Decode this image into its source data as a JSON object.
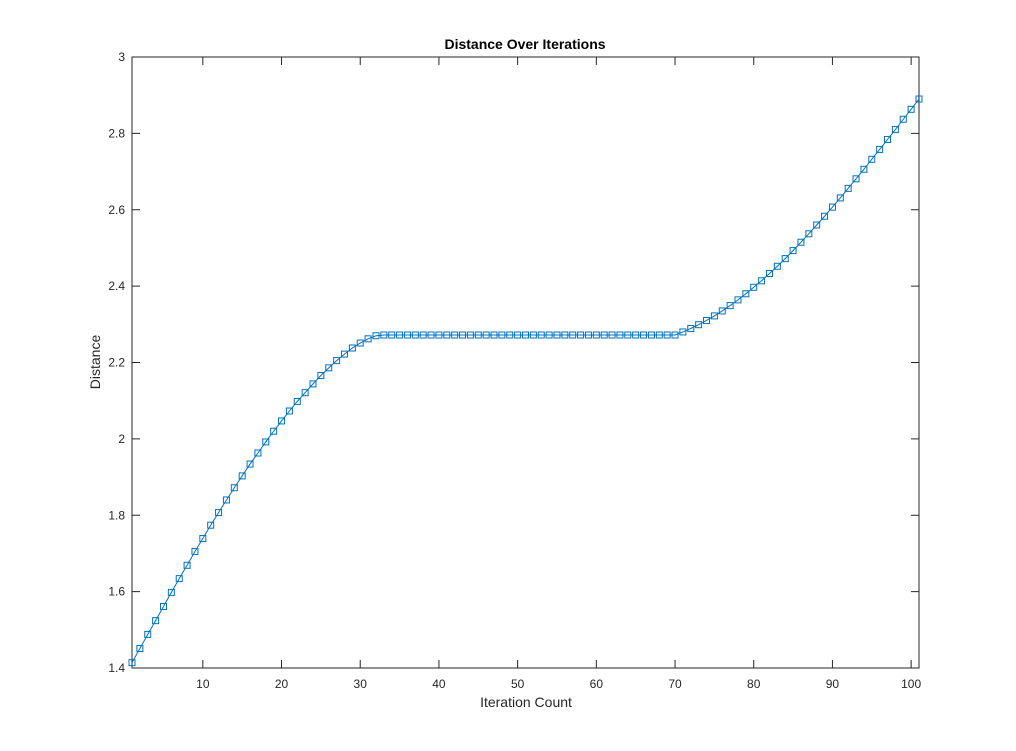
{
  "chart_data": {
    "type": "line",
    "title": "Distance Over Iterations",
    "xlabel": "Iteration Count",
    "ylabel": "Distance",
    "xlim": [
      1,
      101
    ],
    "ylim": [
      1.4,
      3
    ],
    "xticks": [
      10,
      20,
      30,
      40,
      50,
      60,
      70,
      80,
      90,
      100
    ],
    "xtick_labels": [
      "10",
      "20",
      "30",
      "40",
      "50",
      "60",
      "70",
      "80",
      "90",
      "100"
    ],
    "yticks": [
      1.4,
      1.6,
      1.8,
      2,
      2.2,
      2.4,
      2.6,
      2.8,
      3
    ],
    "ytick_labels": [
      "1.4",
      "1.6",
      "1.8",
      "2",
      "2.2",
      "2.4",
      "2.6",
      "2.8",
      "3"
    ],
    "grid": false,
    "marker": "square",
    "line_color": "#0072BD",
    "series": [
      {
        "x": [
          1,
          2,
          3,
          4,
          5,
          6,
          7,
          8,
          9,
          10,
          11,
          12,
          13,
          14,
          15,
          16,
          17,
          18,
          19,
          20,
          21,
          22,
          23,
          24,
          25,
          26,
          27,
          28,
          29,
          30,
          31,
          32,
          33,
          34,
          35,
          36,
          37,
          38,
          39,
          40,
          41,
          42,
          43,
          44,
          45,
          46,
          47,
          48,
          49,
          50,
          51,
          52,
          53,
          54,
          55,
          56,
          57,
          58,
          59,
          60,
          61,
          62,
          63,
          64,
          65,
          66,
          67,
          68,
          69,
          70,
          71,
          72,
          73,
          74,
          75,
          76,
          77,
          78,
          79,
          80,
          81,
          82,
          83,
          84,
          85,
          86,
          87,
          88,
          89,
          90,
          91,
          92,
          93,
          94,
          95,
          96,
          97,
          98,
          99,
          100,
          101
        ],
        "values": [
          1.414,
          1.451,
          1.488,
          1.524,
          1.561,
          1.598,
          1.634,
          1.669,
          1.705,
          1.739,
          1.774,
          1.807,
          1.84,
          1.872,
          1.903,
          1.934,
          1.963,
          1.992,
          2.02,
          2.047,
          2.073,
          2.098,
          2.121,
          2.144,
          2.166,
          2.186,
          2.205,
          2.222,
          2.238,
          2.251,
          2.262,
          2.27,
          2.272,
          2.272,
          2.272,
          2.272,
          2.272,
          2.272,
          2.272,
          2.272,
          2.272,
          2.272,
          2.272,
          2.272,
          2.272,
          2.272,
          2.272,
          2.272,
          2.272,
          2.272,
          2.272,
          2.272,
          2.272,
          2.272,
          2.272,
          2.272,
          2.272,
          2.272,
          2.272,
          2.272,
          2.272,
          2.272,
          2.272,
          2.272,
          2.272,
          2.272,
          2.272,
          2.272,
          2.272,
          2.272,
          2.28,
          2.289,
          2.299,
          2.31,
          2.322,
          2.335,
          2.349,
          2.364,
          2.38,
          2.397,
          2.414,
          2.433,
          2.452,
          2.472,
          2.493,
          2.515,
          2.537,
          2.56,
          2.583,
          2.607,
          2.631,
          2.656,
          2.681,
          2.706,
          2.732,
          2.758,
          2.784,
          2.81,
          2.837,
          2.863,
          2.89
        ]
      }
    ]
  }
}
